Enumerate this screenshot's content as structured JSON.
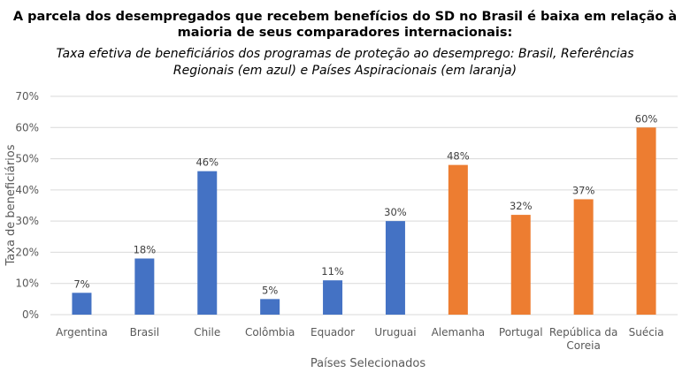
{
  "title_line1": "A parcela dos desempregados que recebem benefícios do SD no Brasil é baixa em relação à",
  "title_line2": "maioria de seus comparadores internacionais:",
  "subtitle_line1": "Taxa efetiva de beneficiários dos programas de proteção ao desemprego: Brasil, Referências",
  "subtitle_line2": "Regionais (em azul) e Países Aspiracionais (em laranja)",
  "chart_data": {
    "type": "bar",
    "xlabel": "Países Selecionados",
    "ylabel": "Taxa de beneficiários",
    "ylim": [
      0,
      70
    ],
    "yticks": [
      "0%",
      "10%",
      "20%",
      "30%",
      "40%",
      "50%",
      "60%",
      "70%"
    ],
    "categories": [
      [
        "Argentina"
      ],
      [
        "Brasil"
      ],
      [
        "Chile"
      ],
      [
        "Colômbia"
      ],
      [
        "Equador"
      ],
      [
        "Uruguai"
      ],
      [
        "Alemanha"
      ],
      [
        "Portugal"
      ],
      [
        "República da",
        "Coreia"
      ],
      [
        "Suécia"
      ]
    ],
    "values": [
      7,
      18,
      46,
      5,
      11,
      30,
      48,
      32,
      37,
      60
    ],
    "value_labels": [
      "7%",
      "18%",
      "46%",
      "5%",
      "11%",
      "30%",
      "48%",
      "32%",
      "37%",
      "60%"
    ],
    "groups": [
      "regional",
      "regional",
      "regional",
      "regional",
      "regional",
      "regional",
      "aspirational",
      "aspirational",
      "aspirational",
      "aspirational"
    ],
    "colors": {
      "regional": "#4472C4",
      "aspirational": "#ED7D31",
      "grid": "#d9d9d9"
    },
    "grid": true,
    "legend": "none"
  }
}
